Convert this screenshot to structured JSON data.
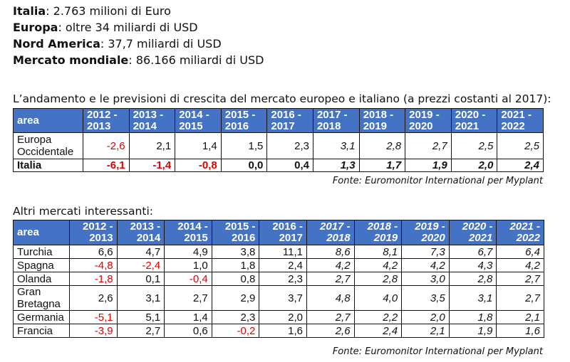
{
  "intro": [
    {
      "label": "Italia",
      "value": ": 2.763 milioni di Euro"
    },
    {
      "label": "Europa",
      "value": ": oltre 34 miliardi di USD"
    },
    {
      "label": "Nord America",
      "value": ": 37,7 miliardi di USD"
    },
    {
      "label": "Mercato mondiale",
      "value": ": 86.166 miliardi di USD"
    }
  ],
  "table1": {
    "caption": "L’andamento e le previsioni di crescita del mercato europeo e italiano (a prezzi costanti al 2017):",
    "headers": [
      "area",
      "2012 - 2013",
      "2013 - 2014",
      "2014 - 2015",
      "2015 - 2016",
      "2016 - 2017",
      "2017 - 2018",
      "2018 - 2019",
      "2019 - 2020",
      "2020 - 2021",
      "2021 - 2022"
    ],
    "rows": [
      {
        "area": "Europa Occidentale",
        "values": [
          "-2,6",
          "2,1",
          "1,4",
          "1,5",
          "2,3",
          "3,1",
          "2,8",
          "2,7",
          "2,5",
          "2,5"
        ]
      },
      {
        "area": "Italia",
        "values": [
          "-6,1",
          "-1,4",
          "-0,8",
          "0,0",
          "0,4",
          "1,3",
          "1,7",
          "1,9",
          "2,0",
          "2,4"
        ]
      }
    ],
    "source": "Fonte: Euromonitor International per Myplant"
  },
  "table2": {
    "caption": "Altri mercati interessanti:",
    "headers": [
      "area",
      "2012 - 2013",
      "2013 - 2014",
      "2014 - 2015",
      "2015 - 2016",
      "2016 - 2017",
      "2017 - 2018",
      "2018 - 2019",
      "2019 - 2020",
      "2020 - 2021",
      "2021 - 2022"
    ],
    "rows": [
      {
        "area": "Turchia",
        "values": [
          "6,6",
          "4,7",
          "4,9",
          "3,8",
          "11,1",
          "8,6",
          "8,1",
          "7,3",
          "6,7",
          "6,4"
        ]
      },
      {
        "area": "Spagna",
        "values": [
          "-4,8",
          "-2,4",
          "1,0",
          "1,8",
          "2,4",
          "4,2",
          "4,2",
          "4,2",
          "4,3",
          "4,2"
        ]
      },
      {
        "area": "Olanda",
        "values": [
          "-1,8",
          "0,1",
          "-0,4",
          "0,8",
          "2,3",
          "2,7",
          "2,8",
          "3,0",
          "2,8",
          "2,7"
        ]
      },
      {
        "area": "Gran Bretagna",
        "values": [
          "2,6",
          "3,1",
          "2,7",
          "2,9",
          "3,7",
          "4,8",
          "4,0",
          "3,5",
          "3,1",
          "2,7"
        ]
      },
      {
        "area": "Germania",
        "values": [
          "-5,1",
          "5,1",
          "1,4",
          "2,3",
          "2,0",
          "2,7",
          "2,2",
          "2,0",
          "1,8",
          "2,1"
        ]
      },
      {
        "area": "Francia",
        "values": [
          "-3,9",
          "2,7",
          "0,6",
          "-0,2",
          "1,6",
          "2,6",
          "2,4",
          "2,1",
          "1,9",
          "1,6"
        ]
      }
    ],
    "source": "Fonte: Euromonitor International per Myplant"
  },
  "colors": {
    "header_bg": "#4472C4",
    "negative": "#e00000"
  }
}
